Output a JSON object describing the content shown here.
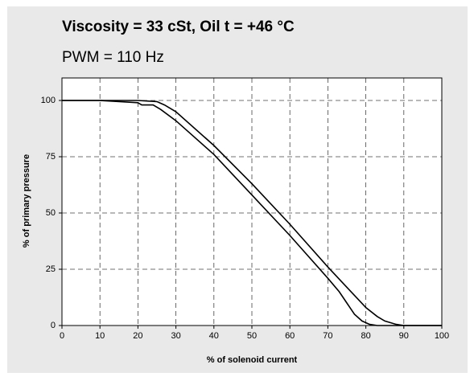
{
  "chart_data": {
    "type": "line",
    "title": "Viscosity = 33 cSt, Oil t = +46 °C",
    "subtitle": "PWM = 110 Hz",
    "xlabel": "% of solenoid current",
    "ylabel": "% of primary pressure",
    "series": [
      {
        "color": "#000000",
        "x": [
          0,
          10,
          20,
          25,
          27,
          30,
          40,
          50,
          60,
          70,
          75,
          80,
          83,
          85,
          88,
          90,
          100
        ],
        "values": [
          100,
          100,
          100,
          99.5,
          98,
          95,
          80,
          63,
          45,
          26,
          17,
          8,
          4,
          2,
          0.5,
          0,
          0
        ]
      },
      {
        "color": "#000000",
        "x": [
          0,
          10,
          20,
          21,
          24,
          26,
          30,
          40,
          50,
          60,
          70,
          73,
          75,
          77,
          79,
          81,
          83,
          90,
          100
        ],
        "values": [
          100,
          100,
          99,
          98,
          98,
          96,
          91,
          76,
          58,
          40,
          21,
          15,
          10,
          5,
          2,
          0.5,
          0,
          0,
          0
        ]
      }
    ],
    "xlim": [
      0,
      100
    ],
    "ylim": [
      0,
      110
    ],
    "xticks": [
      0,
      10,
      20,
      30,
      40,
      50,
      60,
      70,
      80,
      90,
      100
    ],
    "yticks": [
      0,
      25,
      50,
      75,
      100
    ],
    "grid": true
  }
}
